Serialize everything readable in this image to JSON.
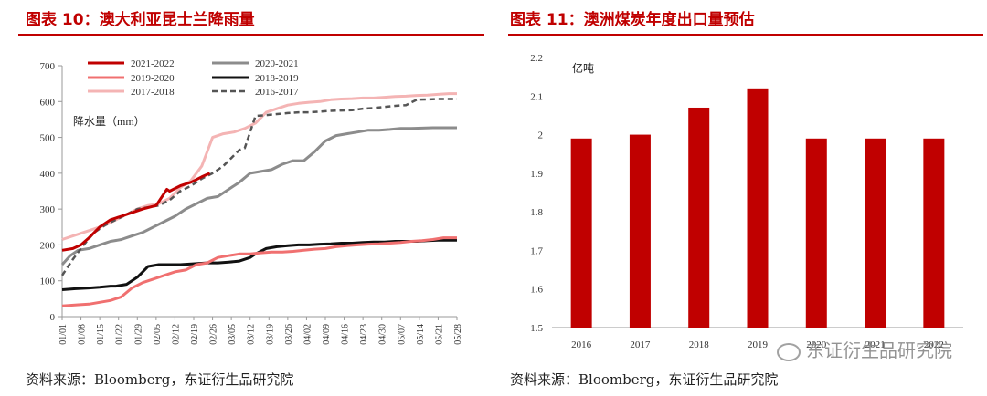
{
  "left": {
    "title": "图表 10：澳大利亚昆士兰降雨量",
    "source": "资料来源：Bloomberg，东证衍生品研究院"
  },
  "right": {
    "title": "图表 11：澳洲煤炭年度出口量预估",
    "source": "资料来源：Bloomberg，东证衍生品研究院"
  },
  "watermark": "东证衍生品研究院",
  "colors": {
    "brand_red": "#c00000",
    "bar_red": "#c00000"
  },
  "chart_data": [
    {
      "type": "line",
      "title": "澳大利亚昆士兰降雨量",
      "ylabel": "降水量（mm）",
      "xlabel": "",
      "ylim": [
        0,
        700
      ],
      "yticks": [
        0,
        100,
        200,
        300,
        400,
        500,
        600,
        700
      ],
      "xticks": [
        "01/01",
        "01/08",
        "01/15",
        "01/22",
        "01/29",
        "02/05",
        "02/12",
        "02/19",
        "02/26",
        "03/05",
        "03/12",
        "03/19",
        "03/26",
        "04/02",
        "04/09",
        "04/16",
        "04/23",
        "04/30",
        "05/07",
        "05/14",
        "05/21",
        "05/28"
      ],
      "legend_position": "top-left",
      "series": [
        {
          "name": "2021-2022",
          "color": "#c00000",
          "width": 3,
          "dash": "",
          "x": [
            0,
            4,
            7,
            10,
            14,
            18,
            22,
            26,
            30,
            35,
            39,
            40,
            44,
            48,
            52,
            55
          ],
          "y": [
            185,
            190,
            200,
            220,
            250,
            270,
            280,
            290,
            300,
            310,
            355,
            350,
            365,
            375,
            390,
            400
          ]
        },
        {
          "name": "2020-2021",
          "color": "#8c8c8c",
          "width": 3,
          "dash": "",
          "x": [
            0,
            3,
            6,
            10,
            14,
            18,
            22,
            26,
            30,
            34,
            38,
            42,
            46,
            50,
            54,
            58,
            62,
            66,
            70,
            74,
            78,
            82,
            86,
            90,
            94,
            98,
            102,
            106,
            110,
            114,
            118,
            122,
            126,
            130,
            134,
            138,
            142,
            147
          ],
          "y": [
            145,
            170,
            185,
            190,
            200,
            210,
            215,
            225,
            235,
            250,
            265,
            280,
            300,
            315,
            330,
            335,
            355,
            375,
            400,
            405,
            410,
            425,
            435,
            435,
            460,
            490,
            505,
            510,
            515,
            520,
            520,
            522,
            525,
            525,
            526,
            527,
            527,
            527
          ]
        },
        {
          "name": "2019-2020",
          "color": "#f07070",
          "width": 3,
          "dash": "",
          "x": [
            0,
            6,
            10,
            14,
            18,
            22,
            26,
            30,
            34,
            38,
            42,
            46,
            50,
            54,
            58,
            62,
            66,
            70,
            74,
            78,
            82,
            86,
            90,
            94,
            98,
            102,
            106,
            110,
            114,
            118,
            122,
            126,
            130,
            134,
            138,
            142,
            147
          ],
          "y": [
            30,
            33,
            35,
            40,
            45,
            55,
            80,
            95,
            105,
            115,
            125,
            130,
            145,
            150,
            165,
            170,
            175,
            175,
            178,
            180,
            180,
            182,
            185,
            188,
            190,
            195,
            198,
            200,
            202,
            203,
            205,
            207,
            210,
            212,
            215,
            220,
            220
          ]
        },
        {
          "name": "2018-2019",
          "color": "#111111",
          "width": 3,
          "dash": "",
          "x": [
            0,
            5,
            10,
            14,
            18,
            20,
            24,
            28,
            30,
            32,
            36,
            40,
            44,
            48,
            50,
            54,
            58,
            62,
            66,
            70,
            72,
            76,
            80,
            84,
            88,
            92,
            96,
            100,
            104,
            108,
            112,
            116,
            120,
            124,
            128,
            132,
            136,
            140,
            144,
            147
          ],
          "y": [
            75,
            78,
            80,
            82,
            85,
            85,
            90,
            110,
            125,
            140,
            145,
            145,
            145,
            147,
            148,
            150,
            150,
            152,
            155,
            165,
            175,
            190,
            195,
            198,
            200,
            200,
            202,
            203,
            205,
            205,
            207,
            208,
            208,
            210,
            210,
            210,
            212,
            213,
            213,
            213
          ]
        },
        {
          "name": "2017-2018",
          "color": "#f4b4b4",
          "width": 3,
          "dash": "",
          "x": [
            0,
            4,
            8,
            12,
            16,
            20,
            24,
            28,
            32,
            36,
            40,
            44,
            48,
            52,
            56,
            60,
            64,
            68,
            72,
            76,
            80,
            84,
            88,
            92,
            96,
            100,
            104,
            108,
            112,
            116,
            120,
            124,
            128,
            132,
            136,
            140,
            144,
            147
          ],
          "y": [
            215,
            225,
            235,
            245,
            255,
            270,
            285,
            300,
            310,
            315,
            330,
            360,
            380,
            420,
            500,
            510,
            515,
            525,
            540,
            570,
            580,
            590,
            595,
            598,
            600,
            605,
            607,
            608,
            610,
            610,
            612,
            614,
            615,
            617,
            618,
            620,
            622,
            622
          ]
        },
        {
          "name": "2016-2017",
          "color": "#555555",
          "width": 2.5,
          "dash": "6,4",
          "x": [
            0,
            4,
            8,
            12,
            16,
            20,
            24,
            28,
            32,
            36,
            40,
            44,
            48,
            52,
            56,
            60,
            64,
            66,
            68,
            72,
            76,
            80,
            84,
            88,
            92,
            96,
            100,
            104,
            108,
            112,
            116,
            120,
            124,
            128,
            132,
            136,
            140,
            144,
            147
          ],
          "y": [
            115,
            160,
            200,
            235,
            255,
            270,
            285,
            300,
            305,
            310,
            325,
            350,
            365,
            385,
            400,
            420,
            450,
            465,
            470,
            560,
            562,
            565,
            568,
            570,
            570,
            572,
            574,
            575,
            576,
            580,
            582,
            585,
            588,
            590,
            605,
            606,
            607,
            607,
            607
          ]
        }
      ]
    },
    {
      "type": "bar",
      "title": "澳洲煤炭年度出口量预估",
      "ylabel": "亿吨",
      "xlabel": "",
      "ylim": [
        1.5,
        2.2
      ],
      "yticks": [
        "1.5",
        "1.6",
        "1.7",
        "1.8",
        "1.9",
        "2",
        "2.1",
        "2.2"
      ],
      "categories": [
        "2016",
        "2017",
        "2018",
        "2019",
        "2020",
        "2021",
        "2022"
      ],
      "values": [
        1.99,
        2.0,
        2.07,
        2.12,
        1.99,
        1.99,
        1.99
      ]
    }
  ]
}
